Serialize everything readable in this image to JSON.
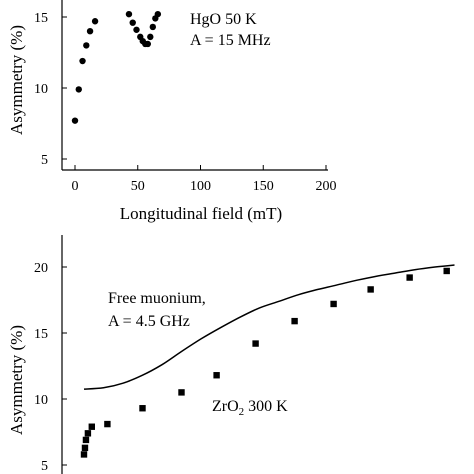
{
  "chart_data": [
    {
      "type": "scatter",
      "xlabel": "Longitudinal field (mT)",
      "ylabel": "Asymmetry (%)",
      "xlim": [
        -10,
        200
      ],
      "ylim": [
        5,
        17.5
      ],
      "xticks": [
        0,
        50,
        100,
        150,
        200
      ],
      "yticks": [
        5,
        10,
        15
      ],
      "annotation_lines": [
        "HgO 50 K",
        "A = 15 MHz"
      ],
      "series": [
        {
          "marker": "circle",
          "x": [
            0,
            3,
            6,
            9,
            12,
            16,
            43,
            46,
            49,
            52,
            54,
            56,
            58,
            60,
            62,
            64,
            66
          ],
          "y": [
            7.7,
            9.9,
            11.9,
            13.0,
            14.0,
            14.7,
            15.2,
            14.6,
            14.1,
            13.6,
            13.3,
            13.1,
            13.1,
            13.6,
            14.3,
            14.9,
            15.2
          ]
        }
      ]
    },
    {
      "type": "scatter",
      "xlabel": "",
      "ylabel": "Asymmetry (%)",
      "xlim": [
        -10,
        200
      ],
      "ylim": [
        5,
        21.5
      ],
      "yticks": [
        5,
        10,
        15,
        20
      ],
      "annotation_free": [
        "Free muonium,",
        "A = 4.5 GHz"
      ],
      "annotation_sample": "ZrO",
      "annotation_sample_sub": "2",
      "annotation_sample_rest": " 300 K",
      "series": [
        {
          "marker": "square",
          "x": [
            0,
            0.5,
            1,
            2,
            4,
            12,
            30,
            50,
            68,
            88,
            108,
            128,
            147,
            167,
            186
          ],
          "y": [
            5.8,
            6.3,
            6.9,
            7.4,
            7.9,
            8.1,
            9.3,
            10.5,
            11.8,
            14.2,
            15.9,
            17.2,
            18.3,
            19.2,
            19.7
          ]
        },
        {
          "marker": "line",
          "x": [
            0,
            10,
            20,
            30,
            40,
            50,
            60,
            70,
            80,
            90,
            100,
            110,
            120,
            130,
            140,
            150,
            160,
            170,
            180,
            190
          ],
          "y": [
            10.75,
            10.85,
            11.2,
            11.8,
            12.6,
            13.6,
            14.55,
            15.4,
            16.2,
            16.9,
            17.4,
            17.9,
            18.3,
            18.65,
            19.0,
            19.3,
            19.55,
            19.8,
            20.0,
            20.15
          ]
        }
      ]
    }
  ]
}
